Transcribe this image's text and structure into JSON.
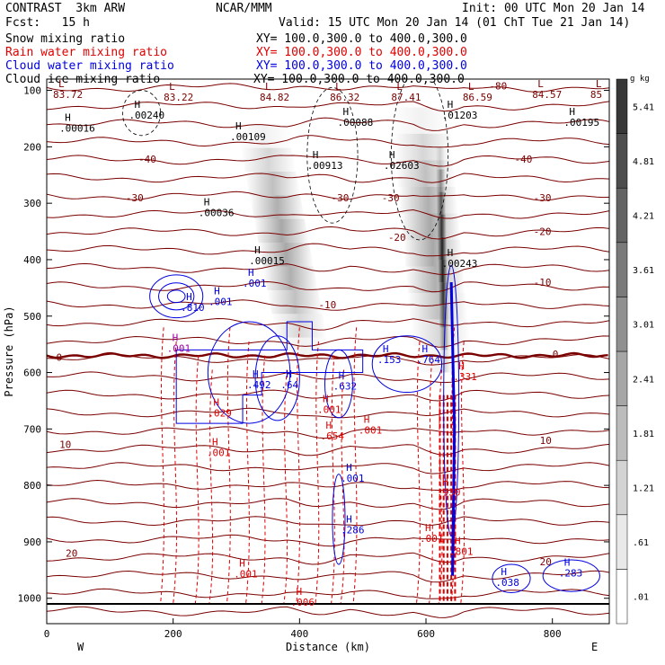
{
  "header": {
    "model": "CONTRAST  3km ARW",
    "org": "NCAR/MMM",
    "init": "Init: 00 UTC Mon 20 Jan 14",
    "fcst": "Fcst:   15 h",
    "valid": "Valid: 15 UTC Mon 20 Jan 14 (01 ChT Tue 21 Jan 14)"
  },
  "legend": [
    {
      "name": "Snow mixing ratio",
      "xy": "XY= 100.0,300.0 to 400.0,300.0",
      "color": "#000000"
    },
    {
      "name": "Rain water mixing ratio",
      "xy": "XY= 100.0,300.0 to 400.0,300.0",
      "color": "#e00000"
    },
    {
      "name": "Cloud water mixing ratio",
      "xy": "XY= 100.0,300.0 to 400.0,300.0",
      "color": "#0000e0"
    },
    {
      "name": "Cloud ice mixing ratio",
      "xy": "XY= 100.0,300.0 to 400.0,300.0",
      "color": "#000000"
    }
  ],
  "chart_data": {
    "type": "contour",
    "xlabel": "Distance (km)",
    "ylabel": "Pressure (hPa)",
    "xlim": [
      0,
      890
    ],
    "ylim": [
      80,
      1045
    ],
    "x_ticks": [
      0,
      200,
      400,
      600,
      800
    ],
    "y_ticks": [
      100,
      200,
      300,
      400,
      500,
      600,
      700,
      800,
      900,
      1000
    ],
    "x_end_labels": {
      "left": "W",
      "right": "E"
    },
    "colorbar": {
      "unit": "g kg",
      "unit_exp": "-1",
      "labels": [
        ".01",
        ".61",
        "1.21",
        "1.81",
        "2.41",
        "3.01",
        "3.61",
        "4.21",
        "4.81",
        "5.41"
      ]
    },
    "temperature_isotherms": [
      {
        "label": "-80",
        "x": 700,
        "p": 92
      },
      {
        "label": "-40",
        "x": 145,
        "p": 222
      },
      {
        "label": "-40",
        "x": 740,
        "p": 222
      },
      {
        "label": "-30",
        "x": 125,
        "p": 290
      },
      {
        "label": "-30",
        "x": 450,
        "p": 290
      },
      {
        "label": "-30",
        "x": 530,
        "p": 290
      },
      {
        "label": "-30",
        "x": 770,
        "p": 290
      },
      {
        "label": "-20",
        "x": 540,
        "p": 360
      },
      {
        "label": "-20",
        "x": 770,
        "p": 350
      },
      {
        "label": "-10",
        "x": 430,
        "p": 480
      },
      {
        "label": "-10",
        "x": 770,
        "p": 440
      },
      {
        "label": "0",
        "x": 15,
        "p": 573
      },
      {
        "label": "0",
        "x": 800,
        "p": 567
      },
      {
        "label": "10",
        "x": 20,
        "p": 727
      },
      {
        "label": "10",
        "x": 780,
        "p": 720
      },
      {
        "label": "20",
        "x": 30,
        "p": 920
      },
      {
        "label": "20",
        "x": 780,
        "p": 935
      }
    ],
    "pressure_lows": [
      {
        "label": "83.72",
        "x": 10,
        "p": 110
      },
      {
        "label": "83.22",
        "x": 185,
        "p": 115
      },
      {
        "label": "84.82",
        "x": 337,
        "p": 115
      },
      {
        "label": "86.32",
        "x": 448,
        "p": 115
      },
      {
        "label": "87.41",
        "x": 545,
        "p": 115
      },
      {
        "label": "86.59",
        "x": 658,
        "p": 115
      },
      {
        "label": "84.57",
        "x": 768,
        "p": 110
      },
      {
        "label": "85",
        "x": 860,
        "p": 110
      }
    ],
    "maxima": [
      {
        "label": ".00240",
        "x": 130,
        "p": 147,
        "color": "black"
      },
      {
        "label": ".00016",
        "x": 20,
        "p": 170,
        "color": "black"
      },
      {
        "label": ".00109",
        "x": 290,
        "p": 185,
        "color": "black"
      },
      {
        "label": ".00088",
        "x": 460,
        "p": 160,
        "color": "black"
      },
      {
        "label": ".01203",
        "x": 625,
        "p": 147,
        "color": "black"
      },
      {
        "label": ".00195",
        "x": 818,
        "p": 160,
        "color": "black"
      },
      {
        "label": ".00913",
        "x": 412,
        "p": 236,
        "color": "black"
      },
      {
        "label": ".02603",
        "x": 533,
        "p": 236,
        "color": "black"
      },
      {
        "label": ".00036",
        "x": 240,
        "p": 320,
        "color": "black"
      },
      {
        "label": ".00015",
        "x": 320,
        "p": 405,
        "color": "black"
      },
      {
        "label": ".00243",
        "x": 625,
        "p": 410,
        "color": "black"
      },
      {
        "label": ".001",
        "x": 310,
        "p": 445,
        "color": "blue"
      },
      {
        "label": ".810",
        "x": 212,
        "p": 488,
        "color": "blue"
      },
      {
        "label": ".001",
        "x": 256,
        "p": 477,
        "color": "blue"
      },
      {
        "label": ".001",
        "x": 190,
        "p": 560,
        "color": "purple"
      },
      {
        "label": ".153",
        "x": 523,
        "p": 580,
        "color": "blue"
      },
      {
        "label": ".764",
        "x": 585,
        "p": 580,
        "color": "blue"
      },
      {
        "label": ".492",
        "x": 317,
        "p": 625,
        "color": "blue"
      },
      {
        "label": ".64",
        "x": 370,
        "p": 625,
        "color": "blue"
      },
      {
        "label": ".632",
        "x": 453,
        "p": 627,
        "color": "blue"
      },
      {
        "label": ".331",
        "x": 643,
        "p": 610,
        "color": "red"
      },
      {
        "label": ".029",
        "x": 255,
        "p": 675,
        "color": "red"
      },
      {
        "label": ".001",
        "x": 428,
        "p": 668,
        "color": "red"
      },
      {
        "label": ".654",
        "x": 433,
        "p": 715,
        "color": "red"
      },
      {
        "label": ".001",
        "x": 493,
        "p": 705,
        "color": "red"
      },
      {
        "label": ".001",
        "x": 253,
        "p": 745,
        "color": "red"
      },
      {
        "label": ".001",
        "x": 465,
        "p": 790,
        "color": "blue"
      },
      {
        "label": ".930",
        "x": 617,
        "p": 815,
        "color": "red"
      },
      {
        "label": ".286",
        "x": 465,
        "p": 882,
        "color": "blue"
      },
      {
        "label": ".001",
        "x": 590,
        "p": 897,
        "color": "red"
      },
      {
        "label": ".801",
        "x": 637,
        "p": 920,
        "color": "red"
      },
      {
        "label": ".001",
        "x": 296,
        "p": 960,
        "color": "red"
      },
      {
        "label": ".038",
        "x": 710,
        "p": 975,
        "color": "blue"
      },
      {
        "label": ".283",
        "x": 810,
        "p": 958,
        "color": "blue"
      },
      {
        "label": ".006",
        "x": 386,
        "p": 1010,
        "color": "red"
      }
    ],
    "snow_shading_plumes": [
      {
        "x_top": 340,
        "p_top": 160,
        "x_bottom": 410,
        "p_bottom": 580,
        "width_km": 80,
        "intensity": 0.35
      },
      {
        "x_top": 590,
        "p_top": 130,
        "x_bottom": 628,
        "p_bottom": 600,
        "width_km": 90,
        "intensity": 0.35
      },
      {
        "x_top": 622,
        "p_top": 200,
        "x_bottom": 630,
        "p_bottom": 600,
        "width_km": 14,
        "intensity": 0.85
      }
    ]
  }
}
